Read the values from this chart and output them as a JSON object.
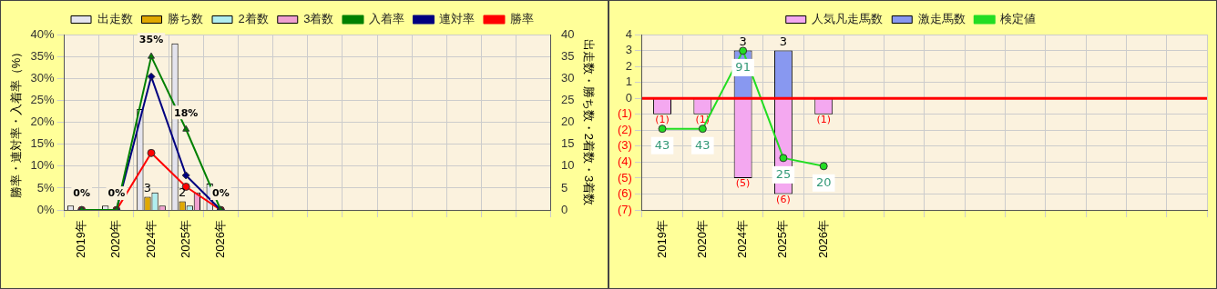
{
  "chart_data": [
    {
      "type": "bar",
      "categories": [
        "2019年",
        "2020年",
        "2024年",
        "2025年",
        "2026年",
        null,
        null,
        null,
        null,
        null,
        null,
        null,
        null,
        null
      ],
      "ylabel": "勝率・連対率・入着率（%）",
      "y2label": "出走数・勝ち数・2着数・3着数",
      "ylim": [
        0,
        40
      ],
      "yticks": [
        {
          "value": 0,
          "label": "0%"
        },
        {
          "value": 5,
          "label": "5%"
        },
        {
          "value": 10,
          "label": "10%"
        },
        {
          "value": 15,
          "label": "15%"
        },
        {
          "value": 20,
          "label": "20%"
        },
        {
          "value": 25,
          "label": "25%"
        },
        {
          "value": 30,
          "label": "30%"
        },
        {
          "value": 35,
          "label": "35%"
        },
        {
          "value": 40,
          "label": "40%"
        }
      ],
      "y2lim": [
        0,
        40
      ],
      "y2ticks": [
        0,
        5,
        10,
        15,
        20,
        25,
        30,
        35,
        40
      ],
      "grid": true,
      "legend": "top",
      "series": [
        {
          "name": "出走数",
          "type": "bar",
          "axis": "y2",
          "color": "#e4e4ee",
          "values": [
            1,
            1,
            23,
            38,
            6,
            null,
            null,
            null,
            null,
            null,
            null,
            null,
            null,
            null
          ]
        },
        {
          "name": "勝ち数",
          "type": "bar",
          "axis": "y2",
          "color": "#e0a800",
          "values": [
            0,
            0,
            3,
            2,
            0,
            null,
            null,
            null,
            null,
            null,
            null,
            null,
            null,
            null
          ],
          "value_labels": [
            null,
            null,
            "3",
            "2",
            null,
            null,
            null,
            null,
            null,
            null,
            null,
            null,
            null,
            null
          ]
        },
        {
          "name": "2着数",
          "type": "bar",
          "axis": "y2",
          "color": "#b0eef0",
          "values": [
            0,
            0,
            4,
            1,
            0,
            null,
            null,
            null,
            null,
            null,
            null,
            null,
            null,
            null
          ]
        },
        {
          "name": "3着数",
          "type": "bar",
          "axis": "y2",
          "color": "#f0a0d0",
          "values": [
            0,
            0,
            1,
            4,
            0,
            null,
            null,
            null,
            null,
            null,
            null,
            null,
            null,
            null
          ]
        },
        {
          "name": "入着率",
          "type": "line",
          "axis": "y",
          "color": "#008000",
          "marker": "triangle",
          "values": [
            0,
            0,
            35,
            18.4,
            0,
            null,
            null,
            null,
            null,
            null,
            null,
            null,
            null,
            null
          ],
          "value_labels": [
            "0%",
            "0%",
            "35%",
            "18%",
            "0%",
            null,
            null,
            null,
            null,
            null,
            null,
            null,
            null,
            null
          ]
        },
        {
          "name": "連対率",
          "type": "line",
          "axis": "y",
          "color": "#000080",
          "marker": "diamond",
          "values": [
            0,
            0,
            30.4,
            7.9,
            0,
            null,
            null,
            null,
            null,
            null,
            null,
            null,
            null,
            null
          ]
        },
        {
          "name": "勝率",
          "type": "line",
          "axis": "y",
          "color": "#ff0000",
          "marker": "circle",
          "values": [
            0,
            0,
            13,
            5.3,
            0,
            null,
            null,
            null,
            null,
            null,
            null,
            null,
            null,
            null
          ]
        }
      ]
    },
    {
      "type": "bar",
      "categories": [
        "2019年",
        "2020年",
        "2024年",
        "2025年",
        "2026年",
        null,
        null,
        null,
        null,
        null,
        null,
        null,
        null,
        null
      ],
      "ylim": [
        -7,
        4
      ],
      "yticks": [
        {
          "value": -7,
          "label": "(7)"
        },
        {
          "value": -6,
          "label": "(6)"
        },
        {
          "value": -5,
          "label": "(5)"
        },
        {
          "value": -4,
          "label": "(4)"
        },
        {
          "value": -3,
          "label": "(3)"
        },
        {
          "value": -2,
          "label": "(2)"
        },
        {
          "value": -1,
          "label": "(1)"
        },
        0,
        1,
        2,
        3,
        4
      ],
      "y2lim": [
        -7,
        101
      ],
      "grid": true,
      "legend": "top",
      "stacked": true,
      "ref_lines": [
        {
          "axis": "y",
          "value": 0,
          "color": "#ff0000"
        }
      ],
      "series": [
        {
          "name": "人気凡走馬数",
          "type": "bar",
          "axis": "y",
          "color": "#f4a8f0",
          "values": [
            -1,
            -1,
            -5,
            -6,
            -1,
            null,
            null,
            null,
            null,
            null,
            null,
            null,
            null,
            null
          ],
          "value_labels": [
            "(1)",
            "(1)",
            "(5)",
            "(6)",
            "(1)",
            null,
            null,
            null,
            null,
            null,
            null,
            null,
            null,
            null
          ]
        },
        {
          "name": "激走馬数",
          "type": "bar",
          "axis": "y",
          "color": "#8898f0",
          "values": [
            0,
            0,
            3,
            3,
            0,
            null,
            null,
            null,
            null,
            null,
            null,
            null,
            null,
            null
          ],
          "value_labels": [
            null,
            null,
            "3",
            "3",
            null,
            null,
            null,
            null,
            null,
            null,
            null,
            null,
            null,
            null
          ]
        },
        {
          "name": "検定値",
          "type": "line",
          "axis": "y2",
          "color": "#22dd22",
          "marker": "circle",
          "values": [
            43,
            43,
            91,
            25,
            20,
            null,
            null,
            null,
            null,
            null,
            null,
            null,
            null,
            null
          ],
          "value_labels": [
            "43",
            "43",
            "91",
            "25",
            "20",
            null,
            null,
            null,
            null,
            null,
            null,
            null,
            null,
            null
          ]
        }
      ]
    }
  ]
}
